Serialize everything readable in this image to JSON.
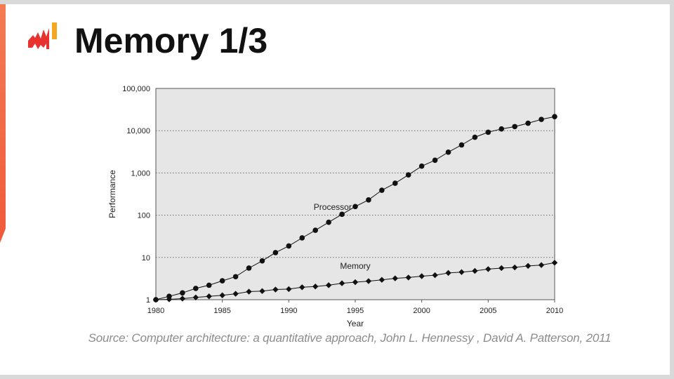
{
  "slide": {
    "title": "Memory 1/3",
    "source": "Source: Computer architecture: a quantitative approach, John L. Hennessy ,  David A. Patterson, 2011",
    "colors": {
      "accent": "#f05a3a",
      "logo_red": "#e8322d",
      "logo_orange": "#f5a623"
    },
    "logo_icon": "bar-logo-icon"
  },
  "chart_data": {
    "type": "line",
    "xlabel": "Year",
    "ylabel": "Performance",
    "xlim": [
      1980,
      2010
    ],
    "ylim": [
      1,
      100000
    ],
    "yscale": "log",
    "grid": "horizontal-dotted",
    "plot_background": "#e6e6e6",
    "x_ticks": [
      1980,
      1985,
      1990,
      1995,
      2000,
      2005,
      2010
    ],
    "x_tick_labels": [
      "1980",
      "1985",
      "1990",
      "1995",
      "2000",
      "2005",
      "2010"
    ],
    "y_ticks": [
      1,
      10,
      100,
      1000,
      10000,
      100000
    ],
    "y_tick_labels": [
      "1",
      "10",
      "100",
      "1,000",
      "10,000",
      "100,000"
    ],
    "series": [
      {
        "name": "Processor",
        "marker": "circle",
        "x": [
          1980,
          1981,
          1982,
          1983,
          1984,
          1985,
          1986,
          1987,
          1988,
          1989,
          1990,
          1991,
          1992,
          1993,
          1994,
          1995,
          1996,
          1997,
          1998,
          1999,
          2000,
          2001,
          2002,
          2003,
          2004,
          2005,
          2006,
          2007,
          2008,
          2009,
          2010
        ],
        "y": [
          1,
          1.2,
          1.45,
          1.85,
          2.2,
          2.8,
          3.5,
          5.6,
          8.3,
          13,
          18.7,
          29,
          44,
          68,
          105,
          160,
          230,
          390,
          570,
          900,
          1450,
          2000,
          3100,
          4600,
          7000,
          9200,
          11000,
          12500,
          15000,
          18500,
          21500
        ]
      },
      {
        "name": "Memory",
        "marker": "diamond",
        "x": [
          1980,
          1981,
          1982,
          1983,
          1984,
          1985,
          1986,
          1987,
          1988,
          1989,
          1990,
          1991,
          1992,
          1993,
          1994,
          1995,
          1996,
          1997,
          1998,
          1999,
          2000,
          2001,
          2002,
          2003,
          2004,
          2005,
          2006,
          2007,
          2008,
          2009,
          2010
        ],
        "y": [
          1,
          1.02,
          1.06,
          1.13,
          1.2,
          1.27,
          1.38,
          1.55,
          1.6,
          1.74,
          1.78,
          1.97,
          2.05,
          2.2,
          2.45,
          2.6,
          2.75,
          2.95,
          3.2,
          3.35,
          3.6,
          3.8,
          4.3,
          4.5,
          4.8,
          5.3,
          5.6,
          5.8,
          6.3,
          6.6,
          7.5
        ]
      }
    ]
  }
}
